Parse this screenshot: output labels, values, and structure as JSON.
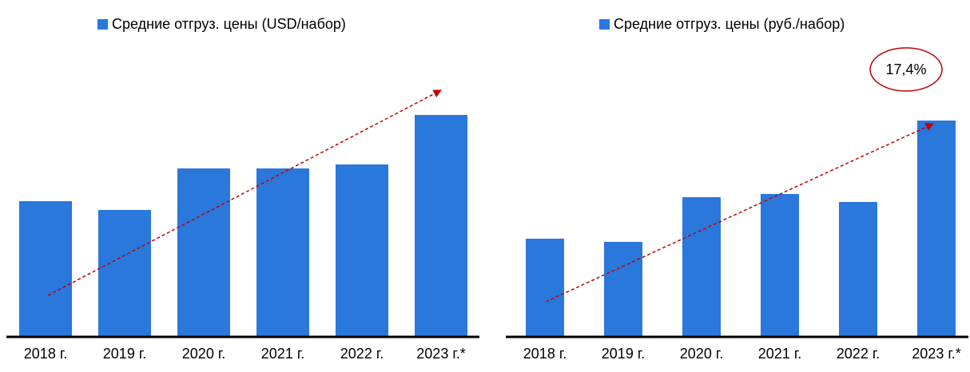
{
  "chart_data": [
    {
      "type": "bar",
      "categories": [
        "2018 г.",
        "2019 г.",
        "2020 г.",
        "2021 г.",
        "2022 г.",
        "2023 г.*"
      ],
      "series": [
        {
          "name": "Средние отгруз. цены (USD/набор)",
          "color": "#2a78dc",
          "values": [
            169,
            158,
            210,
            210,
            215,
            277
          ]
        }
      ],
      "ylim": [
        0,
        300
      ]
    },
    {
      "type": "bar",
      "categories": [
        "2018 г.",
        "2019 г.",
        "2020 г.",
        "2021 г.",
        "2022 г.",
        "2023 г.*"
      ],
      "series": [
        {
          "name": "Средние отгруз. цены (руб./набор)",
          "color": "#2a78dc",
          "values": [
            122,
            118,
            174,
            178,
            168,
            270
          ]
        }
      ],
      "ylim": [
        0,
        300
      ],
      "annotation": "17,4%"
    }
  ]
}
